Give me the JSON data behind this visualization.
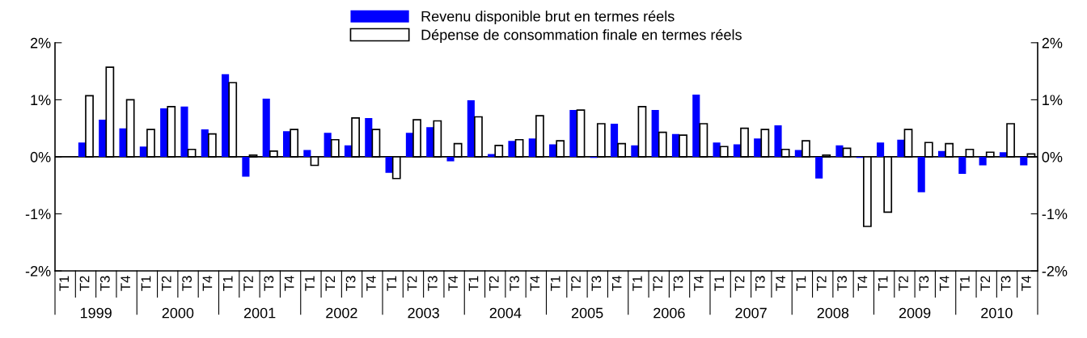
{
  "chart_data": {
    "type": "bar",
    "categories": [
      "T1",
      "T2",
      "T3",
      "T4",
      "T1",
      "T2",
      "T3",
      "T4",
      "T1",
      "T2",
      "T3",
      "T4",
      "T1",
      "T2",
      "T3",
      "T4",
      "T1",
      "T2",
      "T3",
      "T4",
      "T1",
      "T2",
      "T3",
      "T4",
      "T1",
      "T2",
      "T3",
      "T4",
      "T1",
      "T2",
      "T3",
      "T4",
      "T1",
      "T2",
      "T3",
      "T4",
      "T1",
      "T2",
      "T3",
      "T4",
      "T1",
      "T2",
      "T3",
      "T4",
      "T1",
      "T2",
      "T3",
      "T4"
    ],
    "series": [
      {
        "name": "Revenu disponible brut en termes réels",
        "color": "#0000ff",
        "values": [
          null,
          0.25,
          0.65,
          0.5,
          0.18,
          0.85,
          0.88,
          0.48,
          1.45,
          -0.35,
          1.02,
          0.45,
          0.12,
          0.42,
          0.2,
          0.68,
          -0.28,
          0.42,
          0.52,
          -0.08,
          0.99,
          0.05,
          0.28,
          0.32,
          0.22,
          0.82,
          -0.02,
          0.58,
          0.2,
          0.82,
          0.4,
          1.09,
          0.25,
          0.22,
          0.32,
          0.55,
          0.12,
          -0.38,
          0.2,
          -0.02,
          0.25,
          0.3,
          -0.62,
          0.1,
          -0.3,
          -0.15,
          0.08,
          -0.15
        ]
      },
      {
        "name": "Dépense de consommation finale en termes réels",
        "color": "#ffffff",
        "values": [
          null,
          1.07,
          1.57,
          1.0,
          0.48,
          0.88,
          0.13,
          0.4,
          1.3,
          0.03,
          0.1,
          0.48,
          -0.15,
          0.3,
          0.68,
          0.48,
          -0.38,
          0.65,
          0.63,
          0.23,
          0.7,
          0.2,
          0.3,
          0.72,
          0.28,
          0.82,
          0.58,
          0.23,
          0.88,
          0.43,
          0.38,
          0.58,
          0.18,
          0.5,
          0.48,
          0.13,
          0.28,
          0.03,
          0.15,
          -1.22,
          -0.97,
          0.48,
          0.25,
          0.23,
          0.13,
          0.08,
          0.58,
          0.05
        ]
      }
    ],
    "annotations": [
      "1999",
      "2000",
      "2001",
      "2002",
      "2003",
      "2004",
      "2005",
      "2006",
      "2007",
      "2008",
      "2009",
      "2010"
    ],
    "ylim": [
      -2,
      2
    ],
    "yticks": [
      {
        "value": -2,
        "label": "-2%"
      },
      {
        "value": -1,
        "label": "-1%"
      },
      {
        "value": 0,
        "label": "0%"
      },
      {
        "value": 1,
        "label": "1%"
      },
      {
        "value": 2,
        "label": "2%"
      }
    ],
    "y2lim": [
      -2,
      2
    ],
    "y2ticks": [
      {
        "value": -2,
        "label": "-2%"
      },
      {
        "value": -1,
        "label": "-1%"
      },
      {
        "value": 0,
        "label": "0%"
      },
      {
        "value": 1,
        "label": "1%"
      },
      {
        "value": 2,
        "label": "2%"
      }
    ],
    "ref_lines": [
      {
        "axis": "y",
        "value": 0,
        "color": "#000000"
      }
    ],
    "grid": false,
    "legend": "top"
  }
}
